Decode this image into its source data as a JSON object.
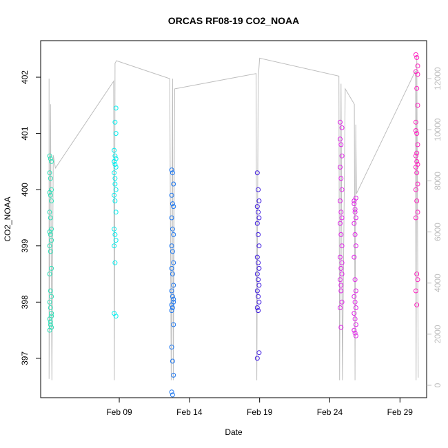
{
  "chart_data": {
    "type": "scatter",
    "title": "ORCAS RF08-19 CO2_NOAA",
    "xlabel": "Date",
    "ylabel": "CO2_NOAA",
    "x_ticks": [
      "Feb 09",
      "Feb 14",
      "Feb 19",
      "Feb 24",
      "Feb 29"
    ],
    "y_ticks": [
      "397",
      "398",
      "399",
      "400",
      "401",
      "402"
    ],
    "y2_ticks": [
      "0",
      "2000",
      "4000",
      "6000",
      "8000",
      "10000",
      "12000"
    ],
    "ylim": [
      396.3,
      402.65
    ],
    "y2lim": [
      0,
      13000
    ],
    "xlim_days": [
      3.4,
      30.9
    ],
    "colors": {
      "altitude_line": "#bebebe",
      "axis": "#000000",
      "secondary_axis": "#bebebe",
      "flight_palette": [
        "#2fe0b8",
        "#00f0f0",
        "#1f78f0",
        "#3c18e0",
        "#e020e8",
        "#ff20c0"
      ]
    },
    "series": [
      {
        "date": "Feb 04",
        "day": 4.1,
        "color": "#2fe0b8",
        "values": [
          400.6,
          400.55,
          400.5,
          400.3,
          400.2,
          400.0,
          399.95,
          399.9,
          399.8,
          399.6,
          399.5,
          399.3,
          399.25,
          399.2,
          399.1,
          399.0,
          398.9,
          398.6,
          398.5,
          398.2,
          398.1,
          398.0,
          397.9,
          397.8,
          397.7,
          397.6,
          397.55,
          397.5,
          397.65,
          397.75
        ]
      },
      {
        "date": "Feb 08",
        "day": 8.7,
        "color": "#00f0f0",
        "values": [
          400.5,
          401.2,
          401.0,
          400.7,
          400.6,
          400.55,
          400.5,
          400.45,
          400.4,
          400.3,
          400.2,
          400.0,
          399.9,
          399.8,
          399.6,
          399.3,
          399.2,
          399.1,
          399.0,
          398.7,
          397.75,
          397.8,
          400.1,
          401.45
        ]
      },
      {
        "date": "Feb 13",
        "day": 12.8,
        "color": "#1f78f0",
        "values": [
          400.35,
          400.3,
          400.1,
          399.9,
          399.75,
          399.7,
          399.5,
          399.3,
          399.2,
          399.0,
          398.9,
          398.7,
          398.6,
          398.5,
          398.3,
          398.2,
          398.1,
          398.0,
          397.95,
          397.9,
          397.6,
          397.2,
          396.95,
          396.7,
          396.4,
          396.35,
          398.05,
          397.85
        ]
      },
      {
        "date": "Feb 18",
        "day": 18.9,
        "color": "#3c18e0",
        "values": [
          400.3,
          400.0,
          399.8,
          399.7,
          399.6,
          399.5,
          399.4,
          399.2,
          399.0,
          398.8,
          398.7,
          398.6,
          398.5,
          398.4,
          398.3,
          398.2,
          398.1,
          398.0,
          397.9,
          397.85,
          397.1,
          397.0
        ]
      },
      {
        "date": "Feb 24",
        "day": 24.8,
        "color": "#e020e8",
        "values": [
          401.2,
          400.8,
          400.6,
          400.4,
          400.2,
          400.0,
          399.8,
          399.6,
          399.5,
          399.4,
          399.2,
          399.0,
          398.8,
          398.6,
          398.5,
          398.4,
          398.2,
          398.0,
          397.9,
          397.55,
          401.1,
          400.9,
          398.3,
          398.7
        ]
      },
      {
        "date": "Feb 25",
        "day": 25.8,
        "color": "#e020e8",
        "values": [
          399.8,
          399.6,
          399.5,
          399.4,
          399.2,
          399.0,
          398.8,
          398.4,
          398.2,
          398.1,
          398.0,
          397.9,
          397.8,
          397.7,
          397.6,
          397.5,
          397.45,
          397.4,
          399.75,
          399.65,
          399.85
        ]
      },
      {
        "date": "Feb 29",
        "day": 30.2,
        "color": "#ff20c0",
        "values": [
          402.4,
          402.35,
          402.2,
          402.1,
          401.8,
          401.5,
          401.2,
          401.0,
          400.8,
          400.6,
          400.5,
          400.45,
          400.4,
          400.3,
          400.1,
          400.0,
          399.8,
          399.6,
          399.5,
          398.5,
          398.4,
          398.2,
          397.95,
          402.05,
          401.05,
          400.65
        ]
      }
    ],
    "altitude_path": [
      [
        4.0,
        12000
      ],
      [
        4.0,
        250
      ],
      [
        4.1,
        11000
      ],
      [
        4.2,
        200
      ],
      [
        4.3,
        9000
      ],
      [
        4.45,
        8500
      ],
      [
        8.6,
        11900
      ],
      [
        8.65,
        200
      ],
      [
        8.7,
        12600
      ],
      [
        8.8,
        12700
      ],
      [
        12.6,
        12000
      ],
      [
        12.7,
        200
      ],
      [
        12.8,
        12000
      ],
      [
        12.85,
        200
      ],
      [
        12.95,
        11600
      ],
      [
        18.75,
        12200
      ],
      [
        18.8,
        200
      ],
      [
        18.9,
        12000
      ],
      [
        19.0,
        12800
      ],
      [
        24.65,
        12100
      ],
      [
        24.7,
        200
      ],
      [
        24.8,
        11800
      ],
      [
        24.9,
        200
      ],
      [
        25.1,
        11600
      ],
      [
        25.75,
        11000
      ],
      [
        25.8,
        200
      ],
      [
        25.85,
        10200
      ],
      [
        25.9,
        7500
      ],
      [
        30.1,
        12300
      ],
      [
        30.15,
        200
      ],
      [
        30.2,
        12900
      ],
      [
        30.3,
        300
      ]
    ]
  }
}
